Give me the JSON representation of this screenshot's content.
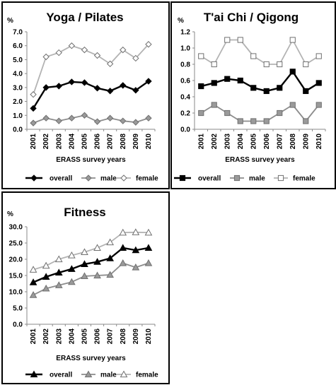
{
  "chart_data": [
    {
      "type": "line",
      "title": "Yoga / Pilates",
      "ylabel": "%",
      "xlabel": "ERASS survey years",
      "x": [
        "2001",
        "2002",
        "2003",
        "2004",
        "2005",
        "2006",
        "2007",
        "2008",
        "2009",
        "2010"
      ],
      "ylim": [
        0,
        7
      ],
      "yticks": [
        "0.0",
        "1.0",
        "2.0",
        "3.0",
        "4.0",
        "5.0",
        "6.0",
        "7.0"
      ],
      "grid": false,
      "legend": "bottom",
      "series": [
        {
          "name": "overall",
          "marker": "diamond",
          "color": "#000000",
          "fill": "#000000",
          "values": [
            1.5,
            3.0,
            3.1,
            3.4,
            3.35,
            2.95,
            2.75,
            3.15,
            2.8,
            3.45
          ]
        },
        {
          "name": "male",
          "marker": "diamond",
          "color": "#8c8c8c",
          "fill": "#9a9a9a",
          "values": [
            0.45,
            0.8,
            0.6,
            0.8,
            1.0,
            0.55,
            0.8,
            0.6,
            0.5,
            0.8
          ]
        },
        {
          "name": "female",
          "marker": "diamond",
          "color": "#b3b3b3",
          "fill": "#ffffff",
          "values": [
            2.5,
            5.2,
            5.5,
            6.0,
            5.7,
            5.3,
            4.7,
            5.7,
            5.1,
            6.1
          ]
        }
      ]
    },
    {
      "type": "line",
      "title": "T'ai Chi / Qigong",
      "ylabel": "%",
      "xlabel": "ERASS survey years",
      "x": [
        "2001",
        "2002",
        "2003",
        "2004",
        "2005",
        "2006",
        "2007",
        "2008",
        "2009",
        "2010"
      ],
      "ylim": [
        0,
        1.2
      ],
      "yticks": [
        "0.0",
        "0.2",
        "0.4",
        "0.6",
        "0.8",
        "1.0",
        "1.2"
      ],
      "grid": false,
      "legend": "bottom",
      "series": [
        {
          "name": "overall",
          "marker": "square",
          "color": "#000000",
          "fill": "#000000",
          "values": [
            0.53,
            0.57,
            0.62,
            0.6,
            0.51,
            0.47,
            0.51,
            0.71,
            0.47,
            0.57
          ]
        },
        {
          "name": "male",
          "marker": "square",
          "color": "#8c8c8c",
          "fill": "#9a9a9a",
          "values": [
            0.2,
            0.3,
            0.2,
            0.1,
            0.1,
            0.1,
            0.2,
            0.3,
            0.1,
            0.3
          ]
        },
        {
          "name": "female",
          "marker": "square",
          "color": "#b3b3b3",
          "fill": "#ffffff",
          "values": [
            0.9,
            0.8,
            1.1,
            1.1,
            0.9,
            0.8,
            0.8,
            1.1,
            0.8,
            0.9
          ]
        }
      ]
    },
    {
      "type": "line",
      "title": "Fitness",
      "ylabel": "%",
      "xlabel": "ERASS survey years",
      "x": [
        "2001",
        "2002",
        "2003",
        "2004",
        "2005",
        "2006",
        "2007",
        "2008",
        "2009",
        "2010"
      ],
      "ylim": [
        0,
        30
      ],
      "yticks": [
        "0.0",
        "5.0",
        "10.0",
        "15.0",
        "20.0",
        "25.0",
        "30.0"
      ],
      "grid": false,
      "legend": "bottom",
      "series": [
        {
          "name": "overall",
          "marker": "triangle",
          "color": "#000000",
          "fill": "#000000",
          "values": [
            12.9,
            14.6,
            15.9,
            17.0,
            18.5,
            19.2,
            20.3,
            23.5,
            22.8,
            23.5
          ]
        },
        {
          "name": "male",
          "marker": "triangle",
          "color": "#8c8c8c",
          "fill": "#9a9a9a",
          "values": [
            9.0,
            11.0,
            12.0,
            13.0,
            14.8,
            15.0,
            15.2,
            18.8,
            17.5,
            18.8
          ]
        },
        {
          "name": "female",
          "marker": "triangle",
          "color": "#b3b3b3",
          "fill": "#ffffff",
          "values": [
            16.8,
            18.0,
            20.0,
            21.2,
            22.2,
            23.5,
            25.2,
            28.2,
            28.3,
            28.2
          ]
        }
      ]
    }
  ]
}
